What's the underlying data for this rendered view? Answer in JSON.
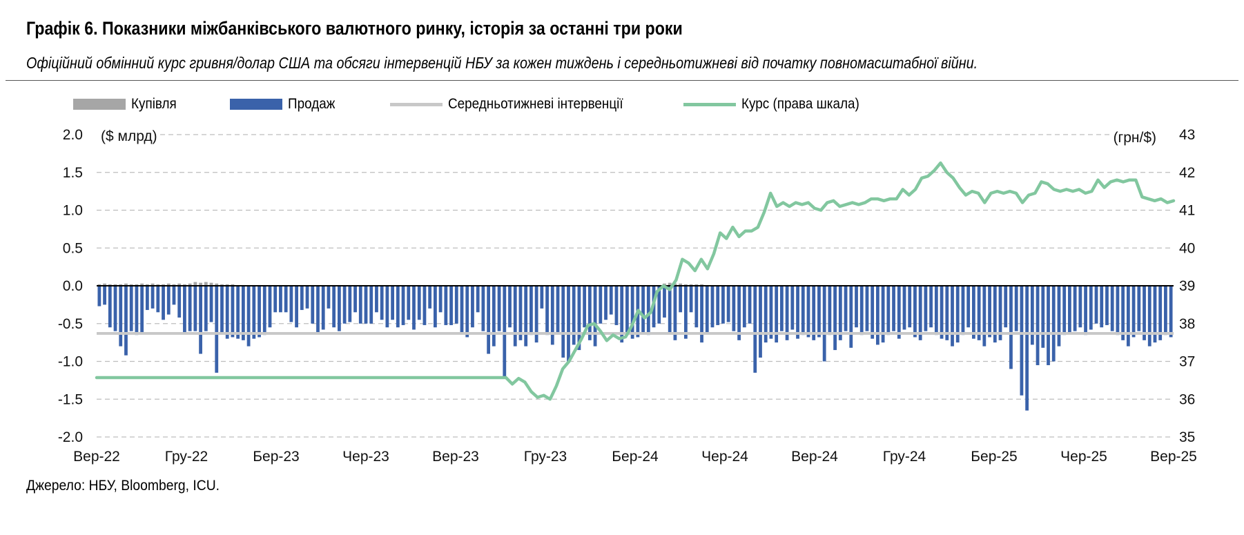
{
  "header": {
    "title": "Графік 6. Показники міжбанківського валютного ринку, історія за останні три роки",
    "subtitle": "Офіційний обмінний курс гривня/долар США та обсяги інтервенцій НБУ за кожен тиждень і середньотижневі від початку повномасштабної війни."
  },
  "source": "Джерело: НБУ, Bloomberg, ICU.",
  "colors": {
    "purchase": "#a6a6a6",
    "sale": "#3a62aa",
    "average": "#c8c8c8",
    "rate": "#82c79f",
    "grid": "#bdbdbd",
    "zero": "#000000"
  },
  "chart_data": {
    "type": "bar",
    "title": "",
    "xlabel": "",
    "ylabel_left": "($ млрд)",
    "ylabel_right": "(грн/$)",
    "ylim_left": [
      -2.0,
      2.0
    ],
    "ylim_right": [
      35,
      43
    ],
    "yticks_left": [
      "2.0",
      "1.5",
      "1.0",
      "0.5",
      "0.0",
      "-0.5",
      "-1.0",
      "-1.5",
      "-2.0"
    ],
    "yticks_right": [
      "43",
      "42",
      "41",
      "40",
      "39",
      "38",
      "37",
      "36",
      "35"
    ],
    "xticks": [
      "Вер-22",
      "Гру-22",
      "Бер-23",
      "Чер-23",
      "Вер-23",
      "Гру-23",
      "Бер-24",
      "Чер-24",
      "Вер-24",
      "Гру-24",
      "Бер-25",
      "Чер-25",
      "Вер-25"
    ],
    "grid": true,
    "legend_position": "top",
    "legend": [
      "Купівля",
      "Продаж",
      "Середньотижневі інтервенції",
      "Курс (права шкала)"
    ],
    "series": [
      {
        "name": "Купівля",
        "type": "bar",
        "values": [
          0.02,
          0.03,
          0.02,
          0.02,
          0.02,
          0.03,
          0.02,
          0.02,
          0.03,
          0.02,
          0.03,
          0.02,
          0.02,
          0.03,
          0.02,
          0.03,
          0.02,
          0.03,
          0.05,
          0.04,
          0.05,
          0.04,
          0.03,
          0.02,
          0.02,
          0.02,
          0.01,
          0.01,
          0.01,
          0.01,
          0.01,
          0.01,
          0.01,
          0.01,
          0.01,
          0.01,
          0.01,
          0.01,
          0.01,
          0.01,
          0.01,
          0.01,
          0.01,
          0.01,
          0.01,
          0.01,
          0.01,
          0.01,
          0.01,
          0.01,
          0.01,
          0.01,
          0.01,
          0.01,
          0.01,
          0.01,
          0.01,
          0.01,
          0.01,
          0.01,
          0.01,
          0.01,
          0.01,
          0.01,
          0.01,
          0.01,
          0.01,
          0.01,
          0.01,
          0.01,
          0.01,
          0.01,
          0.01,
          0.01,
          0.01,
          0.01,
          0.01,
          0.01,
          0.01,
          0.01,
          0.01,
          0.01,
          0.01,
          0.01,
          0.01,
          0.01,
          0.01,
          0.01,
          0.01,
          0.01,
          0.01,
          0.01,
          0.01,
          0.01,
          0.01,
          0.01,
          0.01,
          0.01,
          0.01,
          0.01,
          0.01,
          0.01,
          0.01,
          0.01,
          0.01,
          0.01,
          0.03,
          0.04,
          0.03,
          0.03,
          0.02,
          0.02,
          0.02,
          0.02,
          0.01,
          0.01,
          0.01,
          0.01,
          0.01,
          0.01,
          0.01,
          0.01,
          0.01,
          0.01,
          0.01,
          0.01,
          0.01,
          0.01,
          0.01,
          0.01,
          0.01,
          0.01,
          0.01,
          0.01,
          0.01,
          0.01,
          0.01,
          0.01,
          0.01,
          0.01,
          0.01,
          0.01,
          0.01,
          0.01,
          0.01,
          0.01,
          0.01,
          0.01,
          0.01,
          0.01,
          0.01,
          0.01,
          0.01,
          0.01,
          0.01,
          0.01,
          0.01,
          0.01,
          0.01,
          0.01,
          0.01,
          0.01,
          0.01,
          0.01,
          0.01,
          0.01,
          0.01,
          0.01,
          0.01,
          0.01,
          0.01,
          0.01,
          0.01,
          0.01,
          0.01,
          0.01,
          0.01,
          0.01,
          0.01,
          0.01,
          0.01,
          0.01,
          0.01,
          0.01,
          0.01,
          0.01,
          0.01,
          0.01,
          0.01,
          0.01,
          0.01,
          0.01,
          0.01,
          0.01,
          0.01,
          0.01,
          0.01,
          0.01,
          0.01,
          0.01,
          0.01,
          0.01,
          0.01,
          0.01,
          0.01,
          0.01,
          0.01,
          0.01,
          0.01,
          0.01
        ]
      },
      {
        "name": "Продаж",
        "type": "bar",
        "values": [
          -0.27,
          -0.25,
          -0.55,
          -0.6,
          -0.8,
          -0.92,
          -0.6,
          -0.65,
          -0.62,
          -0.32,
          -0.3,
          -0.35,
          -0.45,
          -0.38,
          -0.25,
          -0.42,
          -0.62,
          -0.6,
          -0.6,
          -0.9,
          -0.6,
          -0.48,
          -1.15,
          -0.62,
          -0.7,
          -0.68,
          -0.7,
          -0.72,
          -0.8,
          -0.7,
          -0.68,
          -0.65,
          -0.55,
          -0.35,
          -0.35,
          -0.35,
          -0.48,
          -0.55,
          -0.32,
          -0.3,
          -0.5,
          -0.62,
          -0.58,
          -0.3,
          -0.55,
          -0.6,
          -0.5,
          -0.48,
          -0.35,
          -0.5,
          -0.5,
          -0.5,
          -0.35,
          -0.45,
          -0.55,
          -0.45,
          -0.55,
          -0.52,
          -0.45,
          -0.58,
          -0.45,
          -0.52,
          -0.3,
          -0.55,
          -0.35,
          -0.52,
          -0.52,
          -0.5,
          -0.62,
          -0.68,
          -0.55,
          -0.35,
          -0.6,
          -0.9,
          -0.8,
          -0.6,
          -1.2,
          -0.55,
          -0.8,
          -0.72,
          -0.8,
          -0.65,
          -0.75,
          -0.3,
          -0.65,
          -0.78,
          -0.62,
          -0.95,
          -1.0,
          -0.78,
          -0.85,
          -0.55,
          -0.72,
          -0.8,
          -0.5,
          -0.45,
          -0.38,
          -0.52,
          -0.75,
          -0.65,
          -0.7,
          -0.68,
          -0.62,
          -0.65,
          -0.55,
          -0.5,
          -0.42,
          -0.62,
          -0.72,
          -0.35,
          -0.7,
          -0.35,
          -0.55,
          -0.75,
          -0.62,
          -0.55,
          -0.52,
          -0.5,
          -0.48,
          -0.6,
          -0.72,
          -0.55,
          -0.5,
          -1.15,
          -0.95,
          -0.75,
          -0.7,
          -0.75,
          -0.6,
          -0.72,
          -0.58,
          -0.7,
          -0.65,
          -0.68,
          -0.72,
          -0.68,
          -1.0,
          -0.65,
          -0.85,
          -0.72,
          -0.6,
          -0.82,
          -0.55,
          -0.65,
          -0.6,
          -0.7,
          -0.78,
          -0.75,
          -0.65,
          -0.6,
          -0.7,
          -0.58,
          -0.55,
          -0.68,
          -0.72,
          -0.6,
          -0.55,
          -0.65,
          -0.7,
          -0.72,
          -0.8,
          -0.75,
          -0.65,
          -0.55,
          -0.7,
          -0.72,
          -0.8,
          -0.68,
          -0.75,
          -0.72,
          -0.55,
          -1.1,
          -0.6,
          -1.45,
          -1.65,
          -0.78,
          -1.05,
          -0.82,
          -1.05,
          -1.0,
          -0.8,
          -0.65,
          -0.62,
          -0.6,
          -0.55,
          -0.65,
          -0.58,
          -0.5,
          -0.55,
          -0.52,
          -0.6,
          -0.65,
          -0.72,
          -0.8,
          -0.68,
          -0.6,
          -0.72,
          -0.8,
          -0.75,
          -0.72,
          -0.65,
          -0.68
        ]
      },
      {
        "name": "Середньотижневі інтервенції",
        "type": "line",
        "value": -0.63
      },
      {
        "name": "Курс (права шкала)",
        "type": "line",
        "axis": "right",
        "values": [
          36.57,
          36.57,
          36.57,
          36.57,
          36.57,
          36.57,
          36.57,
          36.57,
          36.57,
          36.57,
          36.57,
          36.57,
          36.57,
          36.57,
          36.57,
          36.57,
          36.57,
          36.57,
          36.57,
          36.57,
          36.57,
          36.57,
          36.57,
          36.57,
          36.57,
          36.57,
          36.57,
          36.57,
          36.57,
          36.57,
          36.57,
          36.57,
          36.57,
          36.57,
          36.57,
          36.57,
          36.57,
          36.57,
          36.57,
          36.57,
          36.57,
          36.57,
          36.57,
          36.57,
          36.57,
          36.57,
          36.57,
          36.57,
          36.57,
          36.57,
          36.57,
          36.57,
          36.57,
          36.57,
          36.57,
          36.57,
          36.57,
          36.57,
          36.57,
          36.57,
          36.57,
          36.57,
          36.57,
          36.57,
          36.57,
          36.57,
          36.4,
          36.55,
          36.45,
          36.2,
          36.05,
          36.1,
          36.0,
          36.35,
          36.8,
          37.0,
          37.3,
          37.6,
          37.95,
          38.0,
          37.8,
          37.55,
          37.7,
          37.6,
          37.65,
          37.95,
          38.35,
          38.15,
          38.3,
          38.85,
          39.0,
          38.9,
          39.15,
          39.7,
          39.6,
          39.4,
          39.7,
          39.45,
          39.85,
          40.4,
          40.25,
          40.55,
          40.3,
          40.45,
          40.45,
          40.55,
          40.95,
          41.45,
          41.1,
          41.2,
          41.1,
          41.2,
          41.15,
          41.2,
          41.05,
          41.0,
          41.2,
          41.25,
          41.1,
          41.15,
          41.2,
          41.15,
          41.2,
          41.3,
          41.3,
          41.25,
          41.3,
          41.3,
          41.55,
          41.4,
          41.55,
          41.85,
          41.9,
          42.05,
          42.25,
          42.0,
          41.85,
          41.6,
          41.4,
          41.5,
          41.45,
          41.2,
          41.45,
          41.5,
          41.45,
          41.5,
          41.45,
          41.2,
          41.4,
          41.45,
          41.75,
          41.7,
          41.55,
          41.5,
          41.55,
          41.5,
          41.55,
          41.45,
          41.5,
          41.8,
          41.6,
          41.75,
          41.8,
          41.75,
          41.8,
          41.8,
          41.35,
          41.3,
          41.25,
          41.3,
          41.2,
          41.25
        ]
      }
    ]
  }
}
